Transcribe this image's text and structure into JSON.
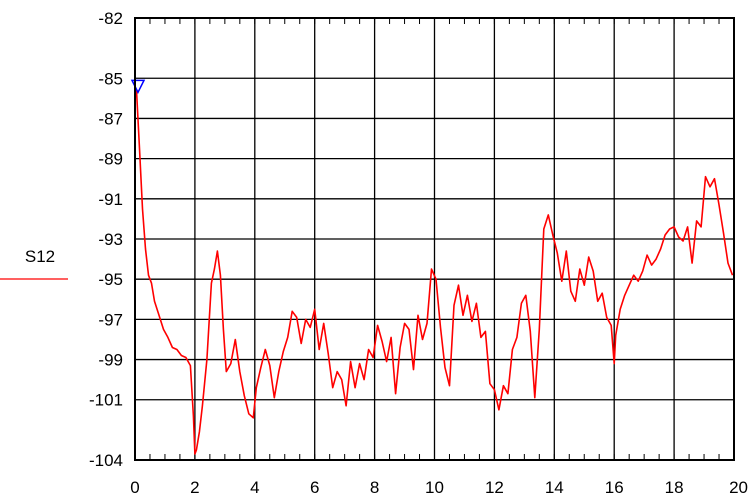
{
  "chart_data": {
    "type": "line",
    "title": "",
    "xlabel": "",
    "ylabel": "",
    "xlim": [
      0,
      20
    ],
    "ylim": [
      -104,
      -82
    ],
    "grid": true,
    "x_ticks": [
      0,
      2,
      4,
      6,
      8,
      10,
      12,
      14,
      16,
      18,
      20
    ],
    "x_tick_labels": [
      "0",
      "2",
      "4",
      "6",
      "8",
      "10",
      "12",
      "14",
      "16",
      "18",
      "20"
    ],
    "y_ticks": [
      -82,
      -85,
      -87,
      -89,
      -91,
      -93,
      -95,
      -97,
      -99,
      -101,
      -104
    ],
    "y_tick_labels": [
      "-82",
      "-85",
      "-87",
      "-89",
      "-91",
      "-93",
      "-95",
      "-97",
      "-99",
      "-101",
      "-104"
    ],
    "legend_placement": "left",
    "series": [
      {
        "name": "S12",
        "color": "#ff0000",
        "x": [
          0.05,
          0.15,
          0.25,
          0.35,
          0.45,
          0.55,
          0.65,
          0.8,
          0.95,
          1.1,
          1.25,
          1.4,
          1.55,
          1.7,
          1.85,
          1.95,
          2.0,
          2.05,
          2.15,
          2.25,
          2.4,
          2.55,
          2.65,
          2.75,
          2.85,
          2.95,
          3.05,
          3.2,
          3.35,
          3.5,
          3.65,
          3.8,
          3.95,
          4.05,
          4.2,
          4.35,
          4.5,
          4.65,
          4.8,
          4.95,
          5.1,
          5.25,
          5.4,
          5.55,
          5.7,
          5.85,
          6.0,
          6.15,
          6.3,
          6.45,
          6.6,
          6.75,
          6.9,
          7.05,
          7.2,
          7.35,
          7.5,
          7.65,
          7.8,
          7.95,
          8.1,
          8.25,
          8.4,
          8.55,
          8.7,
          8.85,
          9.0,
          9.15,
          9.3,
          9.45,
          9.6,
          9.75,
          9.9,
          10.05,
          10.2,
          10.35,
          10.5,
          10.65,
          10.8,
          10.95,
          11.1,
          11.25,
          11.4,
          11.55,
          11.7,
          11.85,
          12.0,
          12.15,
          12.3,
          12.45,
          12.6,
          12.75,
          12.9,
          13.05,
          13.2,
          13.35,
          13.5,
          13.65,
          13.8,
          13.95,
          14.1,
          14.25,
          14.4,
          14.55,
          14.7,
          14.85,
          15.0,
          15.15,
          15.3,
          15.45,
          15.6,
          15.75,
          15.9,
          16.0,
          16.05,
          16.2,
          16.35,
          16.5,
          16.65,
          16.8,
          16.95,
          17.1,
          17.25,
          17.4,
          17.55,
          17.7,
          17.85,
          18.0,
          18.15,
          18.3,
          18.45,
          18.6,
          18.75,
          18.9,
          19.05,
          19.2,
          19.35,
          19.5,
          19.65,
          19.8,
          19.95
        ],
        "values": [
          -85.6,
          -88.5,
          -91.5,
          -93.5,
          -94.8,
          -95.2,
          -96.1,
          -96.8,
          -97.5,
          -97.9,
          -98.4,
          -98.5,
          -98.8,
          -98.9,
          -99.3,
          -101.8,
          -103.7,
          -103.5,
          -102.6,
          -101.3,
          -99.0,
          -95.2,
          -94.5,
          -93.6,
          -94.8,
          -97.5,
          -99.6,
          -99.2,
          -98.0,
          -99.6,
          -100.8,
          -101.7,
          -101.9,
          -100.4,
          -99.4,
          -98.5,
          -99.3,
          -100.9,
          -99.6,
          -98.6,
          -97.9,
          -96.6,
          -96.9,
          -98.2,
          -97.0,
          -97.4,
          -96.5,
          -98.5,
          -97.2,
          -98.7,
          -100.4,
          -99.6,
          -100.0,
          -101.3,
          -99.1,
          -100.4,
          -99.2,
          -100.0,
          -98.5,
          -98.9,
          -97.3,
          -98.1,
          -99.1,
          -97.9,
          -100.7,
          -98.4,
          -97.2,
          -97.5,
          -99.5,
          -96.8,
          -98.0,
          -97.2,
          -94.5,
          -95.0,
          -97.4,
          -99.4,
          -100.3,
          -96.3,
          -95.3,
          -96.8,
          -95.8,
          -97.1,
          -96.2,
          -97.9,
          -97.6,
          -100.2,
          -100.5,
          -101.5,
          -100.3,
          -100.7,
          -98.5,
          -97.9,
          -96.2,
          -95.8,
          -97.6,
          -100.9,
          -97.5,
          -92.5,
          -91.8,
          -92.8,
          -93.7,
          -95.1,
          -93.6,
          -95.6,
          -96.1,
          -94.5,
          -95.3,
          -93.9,
          -94.6,
          -96.1,
          -95.7,
          -96.9,
          -97.3,
          -99.2,
          -97.8,
          -96.5,
          -95.8,
          -95.3,
          -94.8,
          -95.1,
          -94.6,
          -93.8,
          -94.3,
          -94.0,
          -93.5,
          -92.8,
          -92.5,
          -92.4,
          -92.9,
          -93.1,
          -92.4,
          -94.2,
          -92.1,
          -92.4,
          -89.9,
          -90.4,
          -90.0,
          -91.3,
          -92.7,
          -94.2,
          -94.8
        ]
      }
    ],
    "marker": {
      "x": 0.1,
      "y": -85.6,
      "shape": "triangle-down",
      "color": "#0000ff"
    }
  }
}
